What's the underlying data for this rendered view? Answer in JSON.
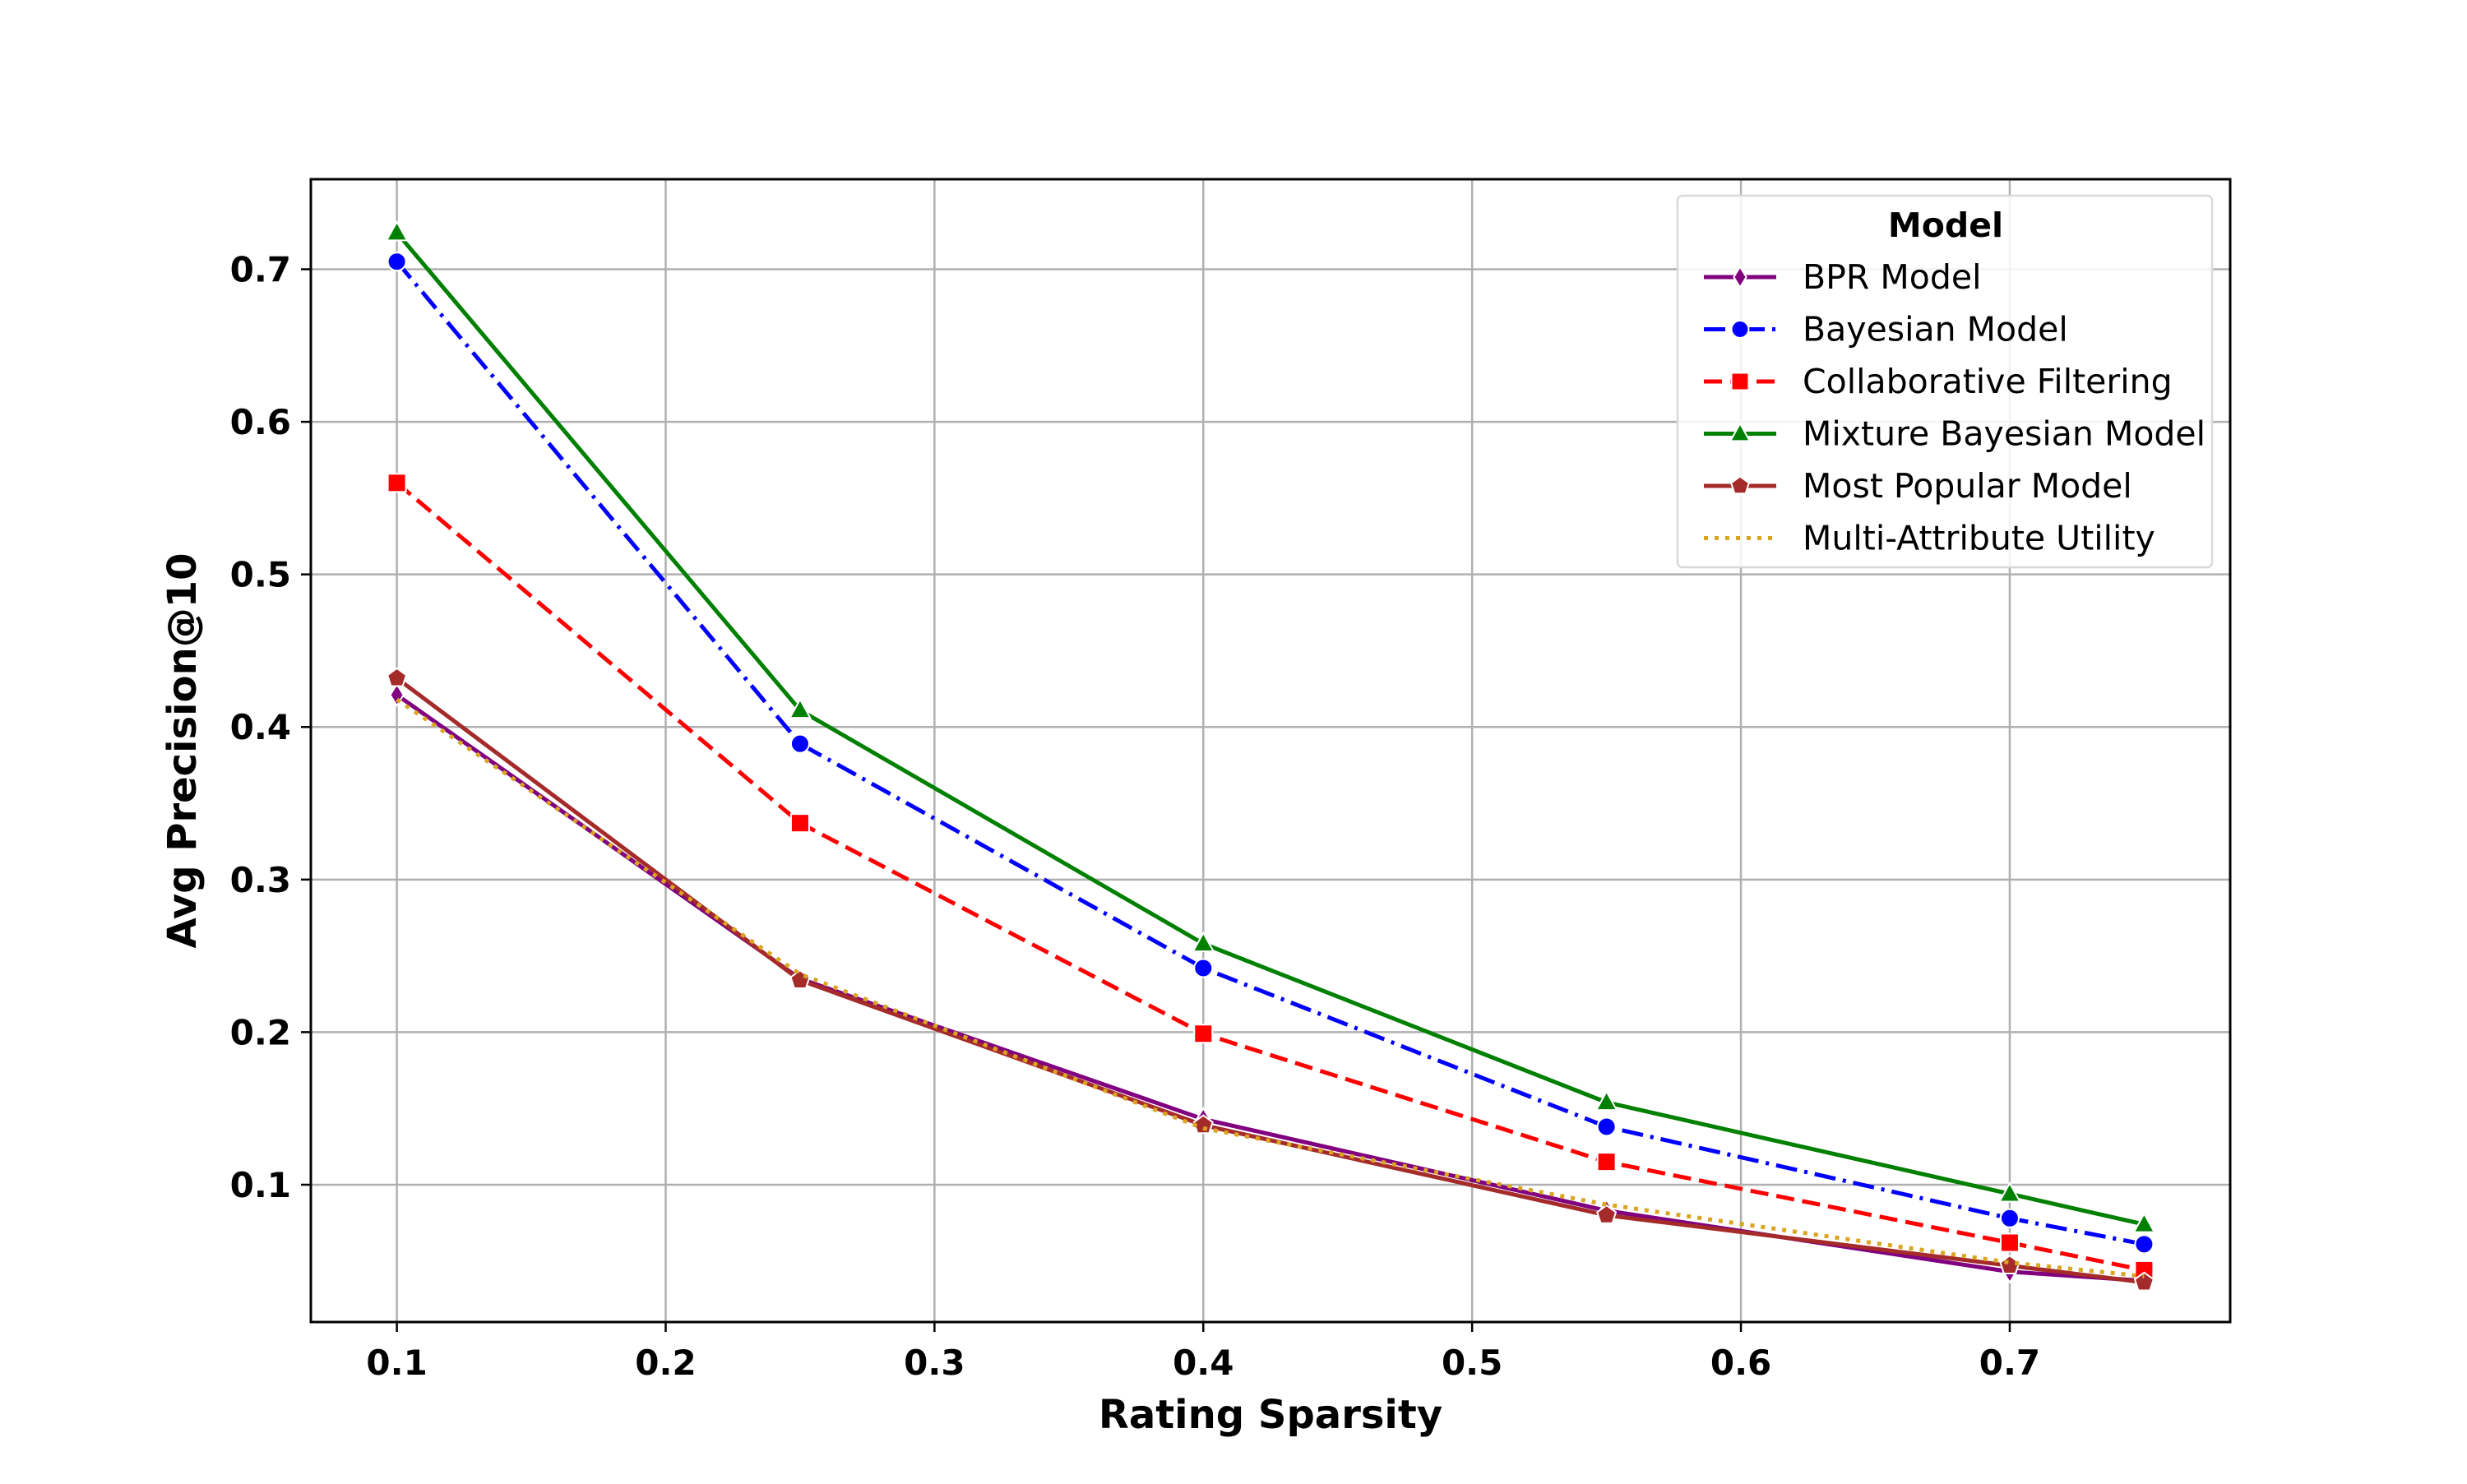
{
  "chart_data": {
    "type": "line",
    "title": "",
    "xlabel": "Rating Sparsity",
    "ylabel": "Avg Precision@10",
    "xlim": [
      0.068,
      0.782
    ],
    "ylim": [
      0.01,
      0.759
    ],
    "xticks": [
      0.1,
      0.2,
      0.3,
      0.4,
      0.5,
      0.6,
      0.7
    ],
    "xtick_labels": [
      "0.1",
      "0.2",
      "0.3",
      "0.4",
      "0.5",
      "0.6",
      "0.7"
    ],
    "yticks": [
      0.1,
      0.2,
      0.3,
      0.4,
      0.5,
      0.6,
      0.7
    ],
    "ytick_labels": [
      "0.1",
      "0.2",
      "0.3",
      "0.4",
      "0.5",
      "0.6",
      "0.7"
    ],
    "grid": true,
    "legend": {
      "title": "Model",
      "position": "top-right"
    },
    "x": [
      0.1,
      0.25,
      0.4,
      0.55,
      0.7,
      0.75
    ],
    "series": [
      {
        "name": "BPR Model",
        "color": "#800080",
        "dash": "solid",
        "marker": "diamond",
        "values": [
          0.421,
          0.235,
          0.143,
          0.083,
          0.043,
          0.037
        ]
      },
      {
        "name": "Bayesian Model",
        "color": "#0000ff",
        "dash": "dashdot",
        "marker": "circle",
        "values": [
          0.705,
          0.389,
          0.242,
          0.138,
          0.078,
          0.061
        ]
      },
      {
        "name": "Collaborative Filtering",
        "color": "#ff0000",
        "dash": "dashed",
        "marker": "square",
        "values": [
          0.56,
          0.337,
          0.199,
          0.115,
          0.062,
          0.044
        ]
      },
      {
        "name": "Mixture Bayesian Model",
        "color": "#008000",
        "dash": "solid",
        "marker": "triangle",
        "values": [
          0.724,
          0.411,
          0.258,
          0.154,
          0.094,
          0.074
        ]
      },
      {
        "name": "Most Popular Model",
        "color": "#a52a2a",
        "dash": "solid",
        "marker": "pentagon",
        "values": [
          0.432,
          0.234,
          0.139,
          0.08,
          0.047,
          0.036
        ]
      },
      {
        "name": "Multi-Attribute Utility",
        "color": "#daa520",
        "dash": "dotted",
        "marker": "none",
        "values": [
          0.418,
          0.238,
          0.137,
          0.087,
          0.049,
          0.04
        ]
      }
    ]
  }
}
